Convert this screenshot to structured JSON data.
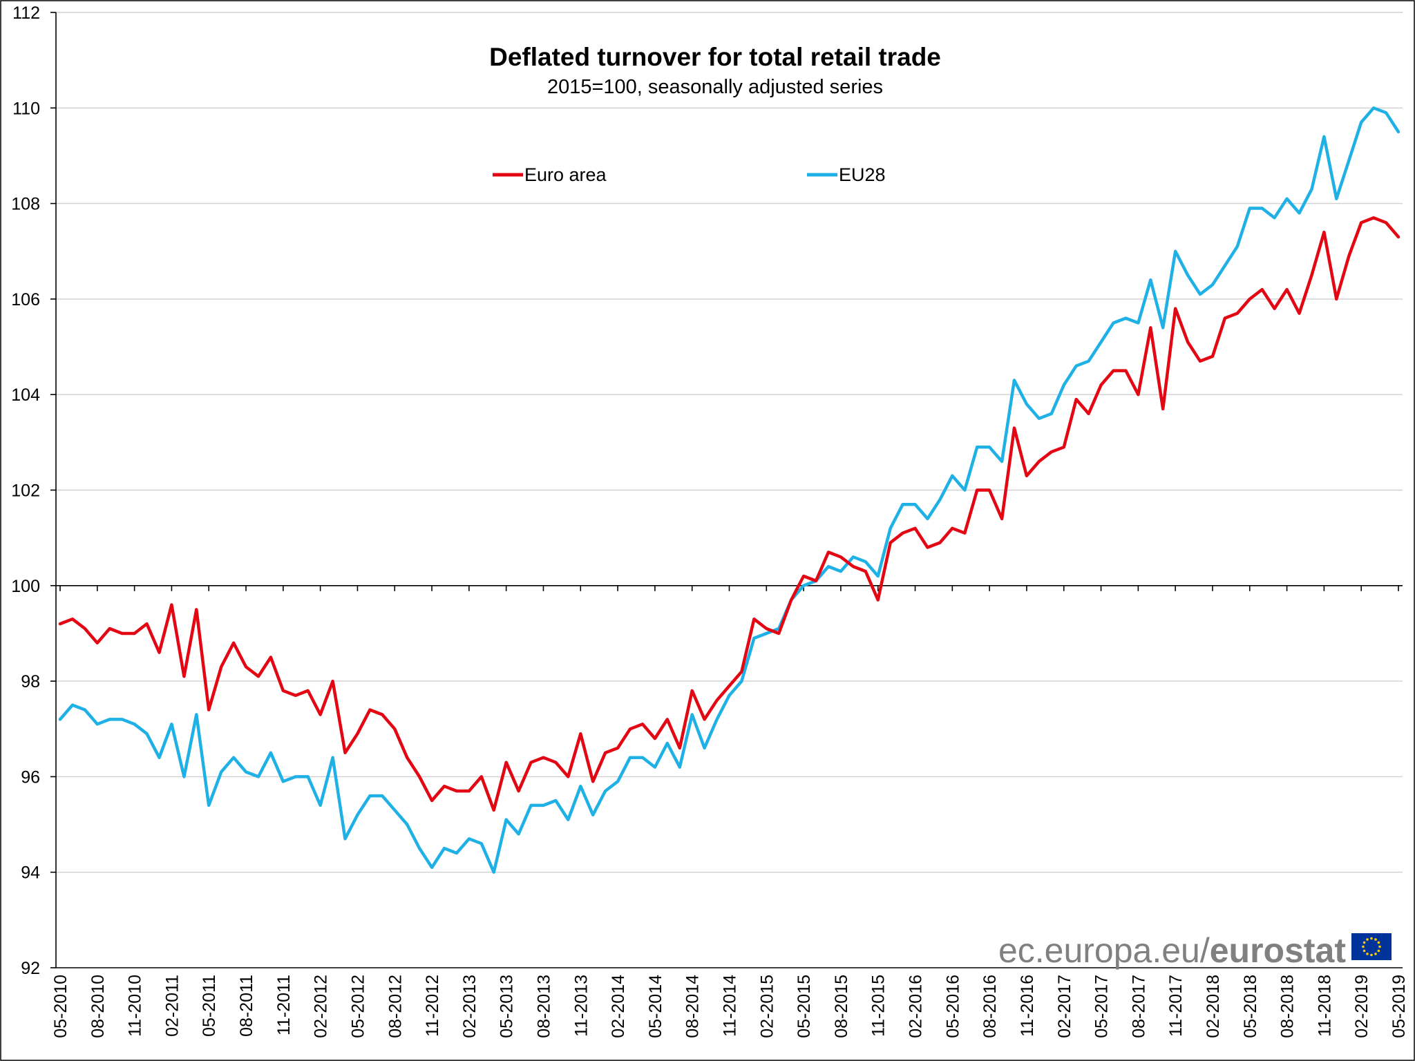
{
  "chart_data": {
    "type": "line",
    "title": "Deflated turnover for total retail trade",
    "subtitle": "2015=100, seasonally adjusted series",
    "xlabel": "",
    "ylabel": "",
    "ylim": [
      92,
      112
    ],
    "yticks": [
      92,
      94,
      96,
      98,
      100,
      102,
      104,
      106,
      108,
      110,
      112
    ],
    "xtick_labels": [
      "05-2010",
      "08-2010",
      "11-2010",
      "02-2011",
      "05-2011",
      "08-2011",
      "11-2011",
      "02-2012",
      "05-2012",
      "08-2012",
      "11-2012",
      "02-2013",
      "05-2013",
      "08-2013",
      "11-2013",
      "02-2014",
      "05-2014",
      "08-2014",
      "11-2014",
      "02-2015",
      "05-2015",
      "08-2015",
      "11-2015",
      "02-2016",
      "05-2016",
      "08-2016",
      "11-2016",
      "02-2017",
      "05-2017",
      "08-2017",
      "11-2017",
      "02-2018",
      "05-2018",
      "08-2018",
      "11-2018",
      "02-2019",
      "05-2019"
    ],
    "legend_position": "top-center",
    "grid": true,
    "series": [
      {
        "name": "Euro area",
        "color": "#e30613",
        "values": [
          99.2,
          99.3,
          99.1,
          98.8,
          99.1,
          99.0,
          99.0,
          99.2,
          98.6,
          99.6,
          98.1,
          99.5,
          97.4,
          98.3,
          98.8,
          98.3,
          98.1,
          98.5,
          97.8,
          97.7,
          97.8,
          97.3,
          98.0,
          96.5,
          96.9,
          97.4,
          97.3,
          97.0,
          96.4,
          96.0,
          95.5,
          95.8,
          95.7,
          95.7,
          96.0,
          95.3,
          96.3,
          95.7,
          96.3,
          96.4,
          96.3,
          96.0,
          96.9,
          95.9,
          96.5,
          96.6,
          97.0,
          97.1,
          96.8,
          97.2,
          96.6,
          97.8,
          97.2,
          97.6,
          97.9,
          98.2,
          99.3,
          99.1,
          99.0,
          99.7,
          100.2,
          100.1,
          100.7,
          100.6,
          100.4,
          100.3,
          99.7,
          100.9,
          101.1,
          101.2,
          100.8,
          100.9,
          101.2,
          101.1,
          102.0,
          102.0,
          101.4,
          103.3,
          102.3,
          102.6,
          102.8,
          102.9,
          103.9,
          103.6,
          104.2,
          104.5,
          104.5,
          104.0,
          105.4,
          103.7,
          105.8,
          105.1,
          104.7,
          104.8,
          105.6,
          105.7,
          106.0,
          106.2,
          105.8,
          106.2,
          105.7,
          106.5,
          107.4,
          106.0,
          106.9,
          107.6,
          107.7,
          107.6,
          107.3
        ]
      },
      {
        "name": "EU28",
        "color": "#1fb1e6",
        "values": [
          97.2,
          97.5,
          97.4,
          97.1,
          97.2,
          97.2,
          97.1,
          96.9,
          96.4,
          97.1,
          96.0,
          97.3,
          95.4,
          96.1,
          96.4,
          96.1,
          96.0,
          96.5,
          95.9,
          96.0,
          96.0,
          95.4,
          96.4,
          94.7,
          95.2,
          95.6,
          95.6,
          95.3,
          95.0,
          94.5,
          94.1,
          94.5,
          94.4,
          94.7,
          94.6,
          94.0,
          95.1,
          94.8,
          95.4,
          95.4,
          95.5,
          95.1,
          95.8,
          95.2,
          95.7,
          95.9,
          96.4,
          96.4,
          96.2,
          96.7,
          96.2,
          97.3,
          96.6,
          97.2,
          97.7,
          98.0,
          98.9,
          99.0,
          99.1,
          99.7,
          100.0,
          100.1,
          100.4,
          100.3,
          100.6,
          100.5,
          100.2,
          101.2,
          101.7,
          101.7,
          101.4,
          101.8,
          102.3,
          102.0,
          102.9,
          102.9,
          102.6,
          104.3,
          103.8,
          103.5,
          103.6,
          104.2,
          104.6,
          104.7,
          105.1,
          105.5,
          105.6,
          105.5,
          106.4,
          105.4,
          107.0,
          106.5,
          106.1,
          106.3,
          106.7,
          107.1,
          107.9,
          107.9,
          107.7,
          108.1,
          107.8,
          108.3,
          109.4,
          108.1,
          108.9,
          109.7,
          110.0,
          109.9,
          109.5
        ]
      }
    ]
  },
  "branding": {
    "source_url_prefix": "ec.europa.eu/",
    "source_brand": "eurostat",
    "flag_icon": "eu-flag-icon"
  }
}
